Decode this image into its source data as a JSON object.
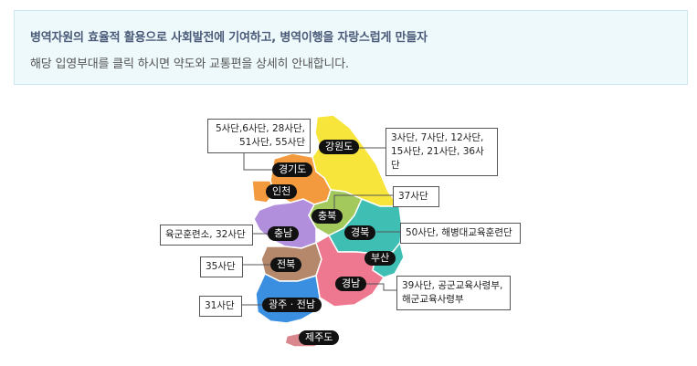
{
  "header": {
    "title": "병역자원의 효율적 활용으로 사회발전에 기여하고, 병역이행을 자랑스럽게 만들자",
    "description": "해당 입영부대를 클릭 하시면 약도와 교통편을 상세히 안내합니다."
  },
  "regions": {
    "gangwon": {
      "label": "강원도",
      "color": "#f7e53b"
    },
    "gyeonggi": {
      "label": "경기도",
      "color": "#f29a3d"
    },
    "incheon": {
      "label": "인천",
      "color": "#f29a3d"
    },
    "chungbuk": {
      "label": "충북",
      "color": "#a3c95d"
    },
    "chungnam": {
      "label": "충남",
      "color": "#b28fdd"
    },
    "gyeongbuk": {
      "label": "경북",
      "color": "#3fbfb3"
    },
    "busan": {
      "label": "부산",
      "color": "#3fbfb3"
    },
    "jeonbuk": {
      "label": "전북",
      "color": "#b5876b"
    },
    "gyeongnam": {
      "label": "경남",
      "color": "#ef7891"
    },
    "jeonnam": {
      "label": "광주 · 전남",
      "color": "#3a8fe0"
    },
    "jeju": {
      "label": "제주도",
      "color": "#d9868c"
    }
  },
  "callouts": {
    "gyeonggi_units": "5사단,6사단, 28사단,\n51사단, 55사단",
    "gangwon_units": "3사단, 7사단, 12사단,\n15사단, 21사단, 36사단",
    "chungbuk_units": "37사단",
    "chungnam_units": "육군훈련소, 32사단",
    "gyeongbuk_units": "50사단, 해병대교육훈련단",
    "jeonbuk_units": "35사단",
    "gyeongnam_units": "39사단, 공군교육사령부,\n해군교육사령부",
    "jeonnam_units": "31사단"
  }
}
